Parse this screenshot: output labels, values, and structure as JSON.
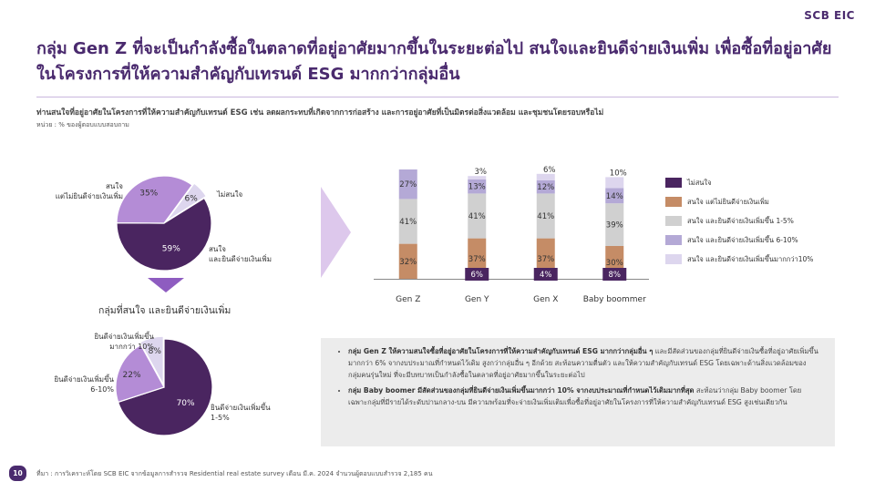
{
  "brand": "SCB EIC",
  "title": "กลุ่ม Gen Z ที่จะเป็นกำลังซื้อในตลาดที่อยู่อาศัยมากขึ้นในระยะต่อไป สนใจและยินดีจ่ายเงินเพิ่ม เพื่อซื้อที่อยู่อาศัยในโครงการที่ให้ความสำคัญกับเทรนด์ ESG มากกว่ากลุ่มอื่น",
  "question": "ท่านสนใจที่อยู่อาศัยในโครงการที่ให้ความสำคัญกับเทรนด์ ESG เช่น ลดผลกระทบที่เกิดจากการก่อสร้าง และการอยู่อาศัยที่เป็นมิตรต่อสิ่งแวดล้อม และชุมชนโดยรอบหรือไม่",
  "unit": "หน่วย : % ของผู้ตอบแบบสอบถาม",
  "subheading": "กลุ่มที่สนใจ และยินดีจ่ายเงินเพิ่ม",
  "notes": [
    {
      "bold": "กลุ่ม Gen Z ให้ความสนใจซื้อที่อยู่อาศัยในโครงการที่ให้ความสำคัญกับเทรนด์ ESG มากกว่ากลุ่มอื่น ๆ",
      "text": " และมีสัดส่วนของกลุ่มที่ยินดีจ่ายเงินซื้อที่อยู่อาศัยเพิ่มขึ้นมากกว่า 6% จากงบประมาณที่กำหนดไว้เดิม สูงกว่ากลุ่มอื่น ๆ อีกด้วย สะท้อนความตื่นตัว และให้ความสำคัญกับเทรนด์ ESG โดยเฉพาะด้านสิ่งแวดล้อมของกลุ่มคนรุ่นใหม่ ที่จะมีบทบาทเป็นกำลังซื้อในตลาดที่อยู่อาศัยมากขึ้นในระยะต่อไป"
    },
    {
      "bold": "กลุ่ม Baby boomer มีสัดส่วนของกลุ่มที่ยินดีจ่ายเงินเพิ่มขึ้นมากกว่า 10% จากงบประมาณที่กำหนดไว้เดิมมากที่สุด",
      "text": " สะท้อนว่ากลุ่ม Baby boomer โดยเฉพาะกลุ่มที่มีรายได้ระดับปานกลาง-บน มีความพร้อมที่จะจ่ายเงินเพิ่มเติมเพื่อซื้อที่อยู่อาศัยในโครงการที่ให้ความสำคัญกับเทรนด์ ESG สูงเช่นเดียวกัน"
    }
  ],
  "page_number": "10",
  "source": "ที่มา : การวิเคราะห์โดย SCB EIC จากข้อมูลการสำรวจ Residential real estate survey เดือน มี.ค. 2024 จำนวนผู้ตอบแบบสำรวจ 2,185 คน",
  "colors": {
    "dark_purple": "#4a2560",
    "brown": "#c58c66",
    "gray": "#d0d0d0",
    "lavender": "#b4a9d6",
    "pale_lavender": "#ddd6ee",
    "pie_mid": "#b48cd6",
    "arrow": "#ddc8ec"
  },
  "chart_data": [
    {
      "type": "pie",
      "slices": [
        {
          "label": "สนใจ และยินดีจ่ายเงินเพิ่ม",
          "value": 59,
          "color": "#4a2560",
          "display": "59%"
        },
        {
          "label": "สนใจ แต่ไม่ยินดีจ่ายเงินเพิ่ม",
          "value": 35,
          "color": "#b48cd6",
          "display": "35%"
        },
        {
          "label": "ไม่สนใจ",
          "value": 6,
          "color": "#ddd6ee",
          "display": "6%"
        }
      ]
    },
    {
      "type": "pie",
      "slices": [
        {
          "label": "ยินดีจ่ายเงินเพิ่มขึ้น 1-5%",
          "value": 70,
          "color": "#4a2560",
          "display": "70%"
        },
        {
          "label": "ยินดีจ่ายเงินเพิ่มขึ้น 6-10%",
          "value": 22,
          "color": "#b48cd6",
          "display": "22%"
        },
        {
          "label": "ยินดีจ่ายเงินเพิ่มขึ้น มากกว่า 10%",
          "value": 8,
          "color": "#ddd6ee",
          "display": "8%"
        }
      ]
    },
    {
      "type": "bar",
      "stacked": true,
      "categories": [
        "Gen Z",
        "Gen Y",
        "Gen X",
        "Baby boommer"
      ],
      "series": [
        {
          "name": "ไม่สนใจ",
          "color": "#4a2560",
          "values": [
            0,
            6,
            4,
            8
          ]
        },
        {
          "name": "สนใจ แต่ไม่ยินดีจ่ายเงินเพิ่ม",
          "color": "#c58c66",
          "values": [
            32,
            37,
            37,
            30
          ]
        },
        {
          "name": "สนใจ และยินดีจ่ายเงินเพิ่มขึ้น 1-5%",
          "color": "#d0d0d0",
          "values": [
            41,
            41,
            41,
            39
          ]
        },
        {
          "name": "สนใจ และยินดีจ่ายเงินเพิ่มขึ้น 6-10%",
          "color": "#b4a9d6",
          "values": [
            27,
            13,
            12,
            14
          ]
        },
        {
          "name": "สนใจ และยินดีจ่ายเงินเพิ่มขึ้นมากกว่า10%",
          "color": "#ddd6ee",
          "values": [
            0,
            3,
            6,
            10
          ]
        }
      ],
      "labels": [
        [
          "",
          "6%",
          "4%",
          "8%"
        ],
        [
          "32%",
          "37%",
          "37%",
          "30%"
        ],
        [
          "41%",
          "41%",
          "41%",
          "39%"
        ],
        [
          "27%",
          "13%",
          "12%",
          "14%"
        ],
        [
          "",
          "3%",
          "6%",
          "10%"
        ]
      ]
    }
  ]
}
